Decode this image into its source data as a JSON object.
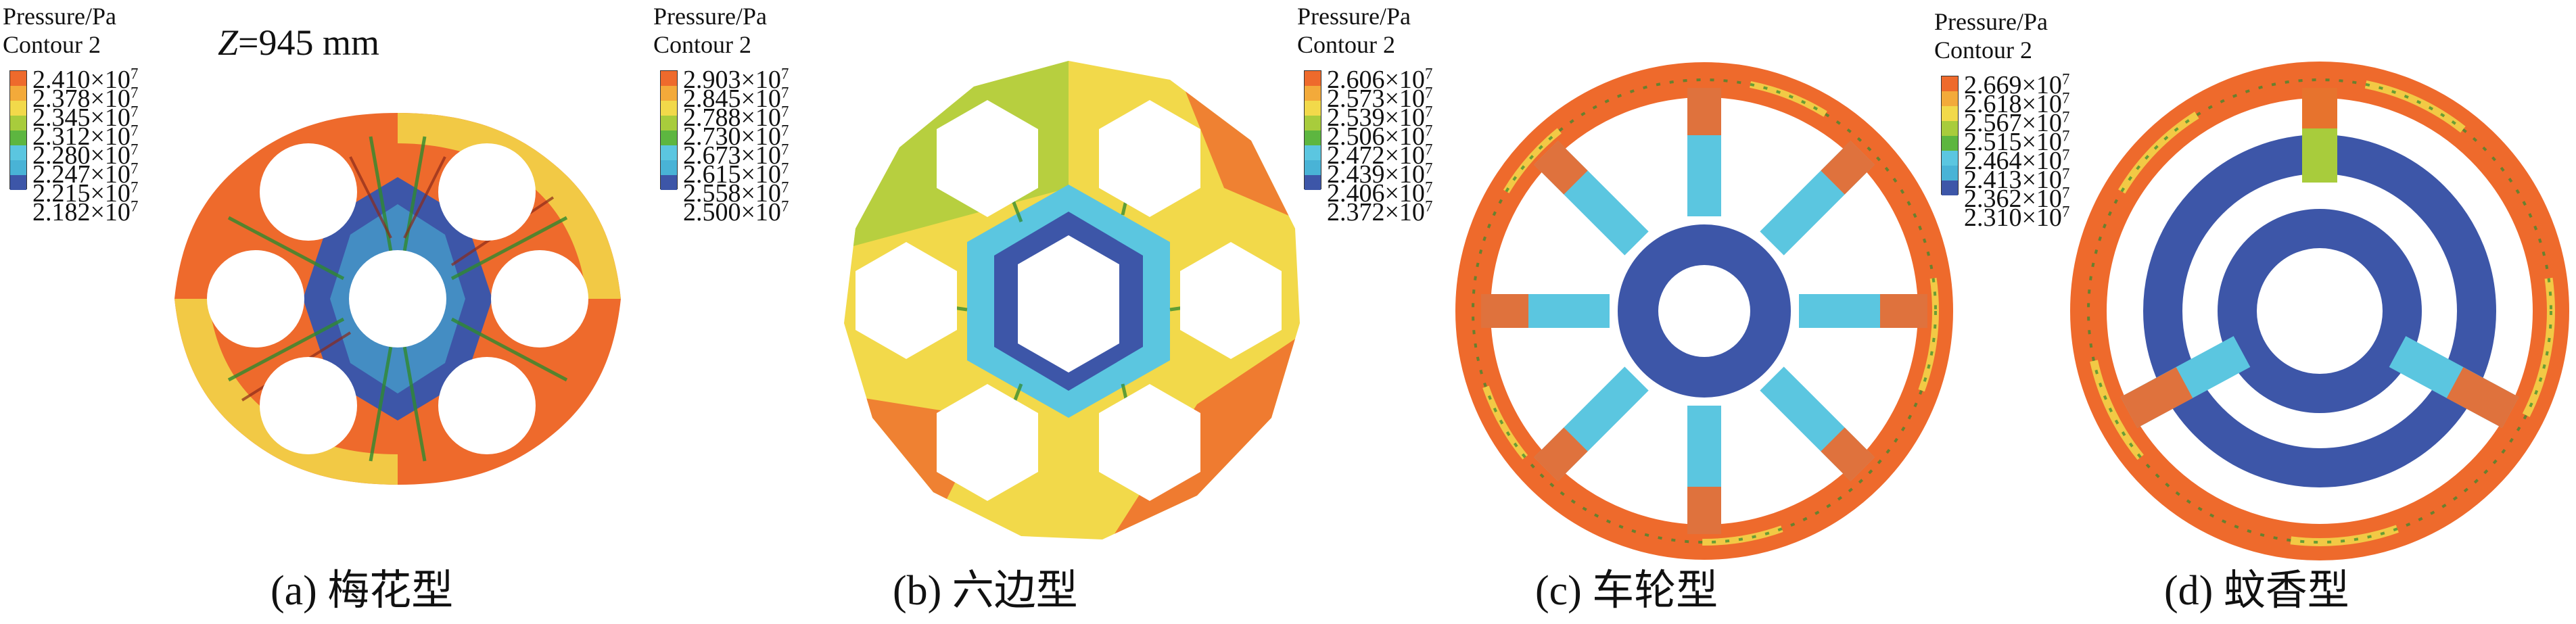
{
  "legend_colors": [
    "#ee6a2c",
    "#f3aa3a",
    "#f2d94a",
    "#a8cc3c",
    "#5db640",
    "#5bc6e0",
    "#49b3d6",
    "#3d56a8"
  ],
  "panels": [
    {
      "legend_title_1": "Pressure/Pa",
      "legend_title_2": "Contour 2",
      "ticks": [
        "2.410×10",
        "2.378×10",
        "2.345×10",
        "2.312×10",
        "2.280×10",
        "2.247×10",
        "2.215×10",
        "2.182×10"
      ],
      "exponent": "7",
      "caption": "(a) 梅花型",
      "z_label_var": "Z",
      "z_label_rest": "=945 mm"
    },
    {
      "legend_title_1": "Pressure/Pa",
      "legend_title_2": "Contour 2",
      "ticks": [
        "2.903×10",
        "2.845×10",
        "2.788×10",
        "2.730×10",
        "2.673×10",
        "2.615×10",
        "2.558×10",
        "2.500×10"
      ],
      "exponent": "7",
      "caption": "(b) 六边型"
    },
    {
      "legend_title_1": "Pressure/Pa",
      "legend_title_2": "Contour 2",
      "ticks": [
        "2.606×10",
        "2.573×10",
        "2.539×10",
        "2.506×10",
        "2.472×10",
        "2.439×10",
        "2.406×10",
        "2.372×10"
      ],
      "exponent": "7",
      "caption": "(c) 车轮型"
    },
    {
      "legend_title_1": "Pressure/Pa",
      "legend_title_2": "Contour 2",
      "ticks": [
        "2.669×10",
        "2.618×10",
        "2.567×10",
        "2.515×10",
        "2.464×10",
        "2.413×10",
        "2.362×10",
        "2.310×10"
      ],
      "exponent": "7",
      "caption": "(d) 蚊香型"
    }
  ]
}
